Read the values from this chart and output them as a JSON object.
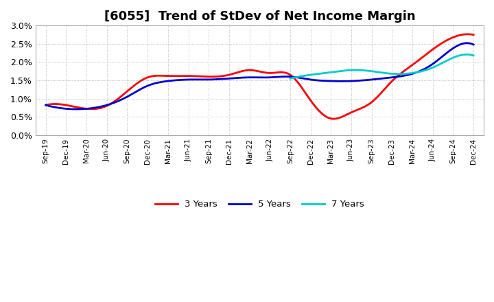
{
  "title": "[6055]  Trend of StDev of Net Income Margin",
  "title_fontsize": 13,
  "ylim": [
    0.0,
    0.03
  ],
  "yticks": [
    0.0,
    0.005,
    0.01,
    0.015,
    0.02,
    0.025,
    0.03
  ],
  "ytick_labels": [
    "0.0%",
    "0.5%",
    "1.0%",
    "1.5%",
    "2.0%",
    "2.5%",
    "3.0%"
  ],
  "background_color": "#ffffff",
  "grid_color": "#aaaaaa",
  "series": {
    "3 Years": {
      "color": "#ff0000"
    },
    "5 Years": {
      "color": "#0000cc"
    },
    "7 Years": {
      "color": "#00cccc"
    },
    "10 Years": {
      "color": "#008000"
    }
  },
  "x_labels": [
    "Sep-19",
    "Dec-19",
    "Mar-20",
    "Jun-20",
    "Sep-20",
    "Dec-20",
    "Mar-21",
    "Jun-21",
    "Sep-21",
    "Dec-21",
    "Mar-22",
    "Jun-22",
    "Sep-22",
    "Dec-22",
    "Mar-23",
    "Jun-23",
    "Sep-23",
    "Dec-23",
    "Mar-24",
    "Jun-24",
    "Sep-24",
    "Dec-24"
  ],
  "y_3yr": [
    0.0082,
    0.0082,
    0.0072,
    0.008,
    0.012,
    0.0158,
    0.0162,
    0.0162,
    0.016,
    0.0165,
    0.0178,
    0.017,
    0.0165,
    0.0095,
    0.0045,
    0.0062,
    0.009,
    0.0148,
    0.0192,
    0.0235,
    0.0268,
    0.0275
  ],
  "y_5yr": [
    0.0082,
    0.0072,
    0.0072,
    0.0082,
    0.0105,
    0.0135,
    0.0148,
    0.0152,
    0.0152,
    0.0155,
    0.0158,
    0.0158,
    0.016,
    0.0152,
    0.0148,
    0.0148,
    0.0152,
    0.0158,
    0.0168,
    0.0195,
    0.0238,
    0.0248
  ],
  "y_7yr": [
    null,
    null,
    null,
    null,
    null,
    null,
    null,
    null,
    null,
    null,
    null,
    null,
    0.0155,
    0.0165,
    0.0172,
    0.0178,
    0.0175,
    0.0168,
    0.017,
    0.0185,
    0.0212,
    0.0218
  ],
  "y_10yr": [
    null,
    null,
    null,
    null,
    null,
    null,
    null,
    null,
    null,
    null,
    null,
    null,
    null,
    null,
    null,
    null,
    null,
    null,
    null,
    null,
    null,
    null
  ]
}
